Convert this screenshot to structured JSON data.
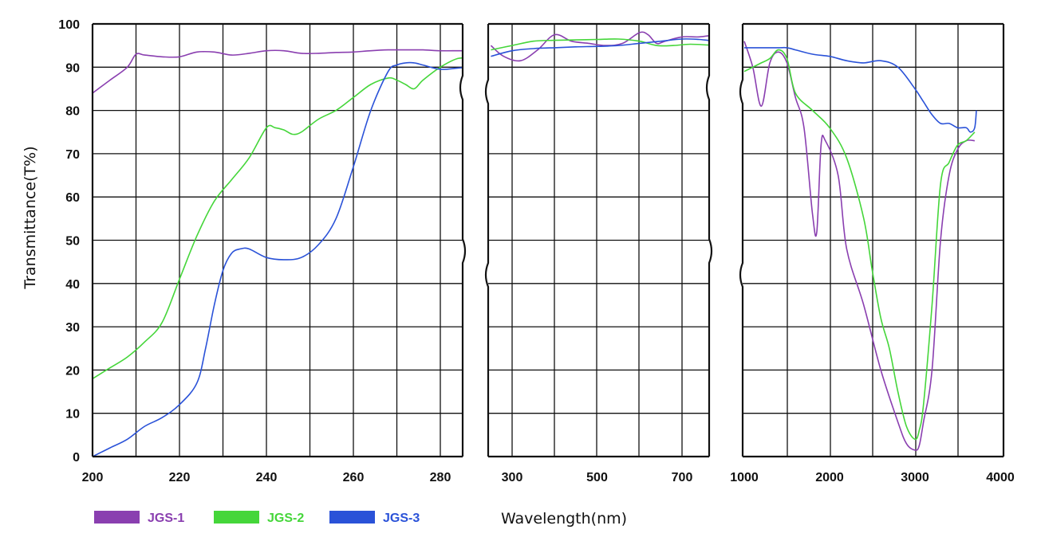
{
  "chart_data": {
    "type": "line",
    "ylabel": "Transmittance(T%)",
    "xlabel": "Wavelength(nm)",
    "ylim": [
      0,
      100
    ],
    "yticks": [
      0,
      10,
      20,
      30,
      40,
      50,
      60,
      70,
      80,
      90,
      100
    ],
    "grid": true,
    "legend_position": "bottom-left",
    "colors": {
      "JGS-1": "#8a3fb0",
      "JGS-2": "#45d63a",
      "JGS-3": "#2a52d8"
    },
    "panels": [
      {
        "xlim": [
          200,
          287
        ],
        "xticks": [
          200,
          220,
          240,
          260,
          280
        ],
        "series": [
          {
            "name": "JGS-1",
            "x": [
              200,
              204,
              208,
              210,
              212,
              216,
              220,
              224,
              228,
              232,
              236,
              240,
              244,
              248,
              252,
              256,
              260,
              264,
              268,
              272,
              276,
              280,
              284,
              287
            ],
            "y": [
              84,
              87,
              90,
              93,
              92.8,
              92.4,
              92.4,
              93.5,
              93.5,
              92.8,
              93.2,
              93.8,
              93.8,
              93.2,
              93.2,
              93.4,
              93.5,
              93.8,
              94,
              94,
              94,
              93.8,
              93.8,
              93.8
            ]
          },
          {
            "name": "JGS-2",
            "x": [
              200,
              204,
              208,
              212,
              216,
              220,
              224,
              228,
              232,
              236,
              240,
              242,
              244,
              246,
              248,
              252,
              256,
              260,
              264,
              268,
              270,
              272,
              274,
              276,
              280,
              284,
              287
            ],
            "y": [
              18,
              20.5,
              23,
              26.5,
              31,
              41,
              51,
              59,
              64,
              69,
              76,
              76,
              75.5,
              74.5,
              75,
              78,
              80,
              83,
              86,
              87.5,
              87,
              86,
              85,
              87,
              90,
              92,
              92
            ]
          },
          {
            "name": "JGS-3",
            "x": [
              200,
              204,
              208,
              212,
              216,
              220,
              224,
              226,
              228,
              230,
              232,
              234,
              236,
              240,
              244,
              248,
              252,
              256,
              260,
              264,
              268,
              270,
              272,
              274,
              276,
              280,
              284,
              287
            ],
            "y": [
              0,
              2,
              4,
              7,
              9,
              12,
              17,
              25,
              35,
              43,
              47,
              48,
              48,
              46,
              45.5,
              46,
              49,
              55,
              67,
              80,
              89,
              90.5,
              91,
              91,
              90.5,
              89.5,
              89.8,
              90
            ]
          }
        ]
      },
      {
        "xlim": [
          250,
          780
        ],
        "xticks": [
          300,
          500,
          700
        ],
        "series": [
          {
            "name": "JGS-1",
            "x": [
              250,
              280,
              320,
              360,
              400,
              440,
              480,
              520,
              560,
              600,
              620,
              640,
              660,
              700,
              740,
              780
            ],
            "y": [
              95,
              92.5,
              91.5,
              94,
              97.5,
              96,
              95.5,
              95,
              95.5,
              98,
              97.5,
              95.5,
              96,
              97,
              97,
              97.5
            ]
          },
          {
            "name": "JGS-2",
            "x": [
              250,
              300,
              350,
              400,
              450,
              500,
              550,
              600,
              640,
              680,
              720,
              780
            ],
            "y": [
              94,
              95,
              96,
              96.2,
              96.3,
              96.4,
              96.5,
              96,
              95,
              95,
              95.3,
              95
            ]
          },
          {
            "name": "JGS-3",
            "x": [
              250,
              300,
              350,
              400,
              450,
              500,
              550,
              600,
              650,
              700,
              740,
              780
            ],
            "y": [
              92.5,
              93.8,
              94.3,
              94.5,
              94.7,
              94.8,
              95,
              95.5,
              96,
              96.5,
              96.4,
              96
            ]
          }
        ]
      },
      {
        "xlim": [
          1000,
          4000
        ],
        "xticks": [
          1000,
          2000,
          3000,
          4000
        ],
        "series": [
          {
            "name": "JGS-1",
            "x": [
              1000,
              1100,
              1200,
              1300,
              1400,
              1500,
              1600,
              1700,
              1800,
              1850,
              1900,
              1950,
              2100,
              2200,
              2400,
              2600,
              2800,
              2900,
              3000,
              3050,
              3100,
              3200,
              3300,
              3400,
              3500,
              3600,
              3700
            ],
            "y": [
              96,
              90,
              81,
              91,
              93.5,
              91,
              83,
              76,
              56,
              52,
              72,
              73,
              65,
              48,
              35,
              20,
              8,
              3,
              1.5,
              2.5,
              8,
              20,
              50,
              65,
              71,
              73,
              73
            ]
          },
          {
            "name": "JGS-2",
            "x": [
              1000,
              1100,
              1200,
              1300,
              1400,
              1500,
              1600,
              1800,
              2000,
              2200,
              2400,
              2500,
              2600,
              2700,
              2800,
              2900,
              3000,
              3050,
              3100,
              3200,
              3300,
              3400,
              3500,
              3600,
              3700
            ],
            "y": [
              89,
              90,
              91,
              92,
              94,
              92,
              84,
              80,
              76,
              69,
              55,
              43,
              32,
              25,
              15,
              7,
              4,
              6,
              12,
              35,
              63,
              68,
              72,
              73,
              75
            ]
          },
          {
            "name": "JGS-3",
            "x": [
              1000,
              1200,
              1400,
              1500,
              1600,
              1800,
              2000,
              2200,
              2400,
              2600,
              2800,
              3000,
              3100,
              3200,
              3300,
              3400,
              3500,
              3600,
              3650,
              3700,
              3720
            ],
            "y": [
              94.5,
              94.5,
              94.5,
              94.5,
              94,
              93,
              92.5,
              91.5,
              91,
              91.5,
              90,
              85,
              82,
              79,
              77,
              77,
              76,
              76,
              75,
              76,
              80
            ]
          }
        ]
      }
    ],
    "legend": [
      {
        "name": "JGS-1",
        "label": "JGS-1"
      },
      {
        "name": "JGS-2",
        "label": "JGS-2"
      },
      {
        "name": "JGS-3",
        "label": "JGS-3"
      }
    ]
  }
}
